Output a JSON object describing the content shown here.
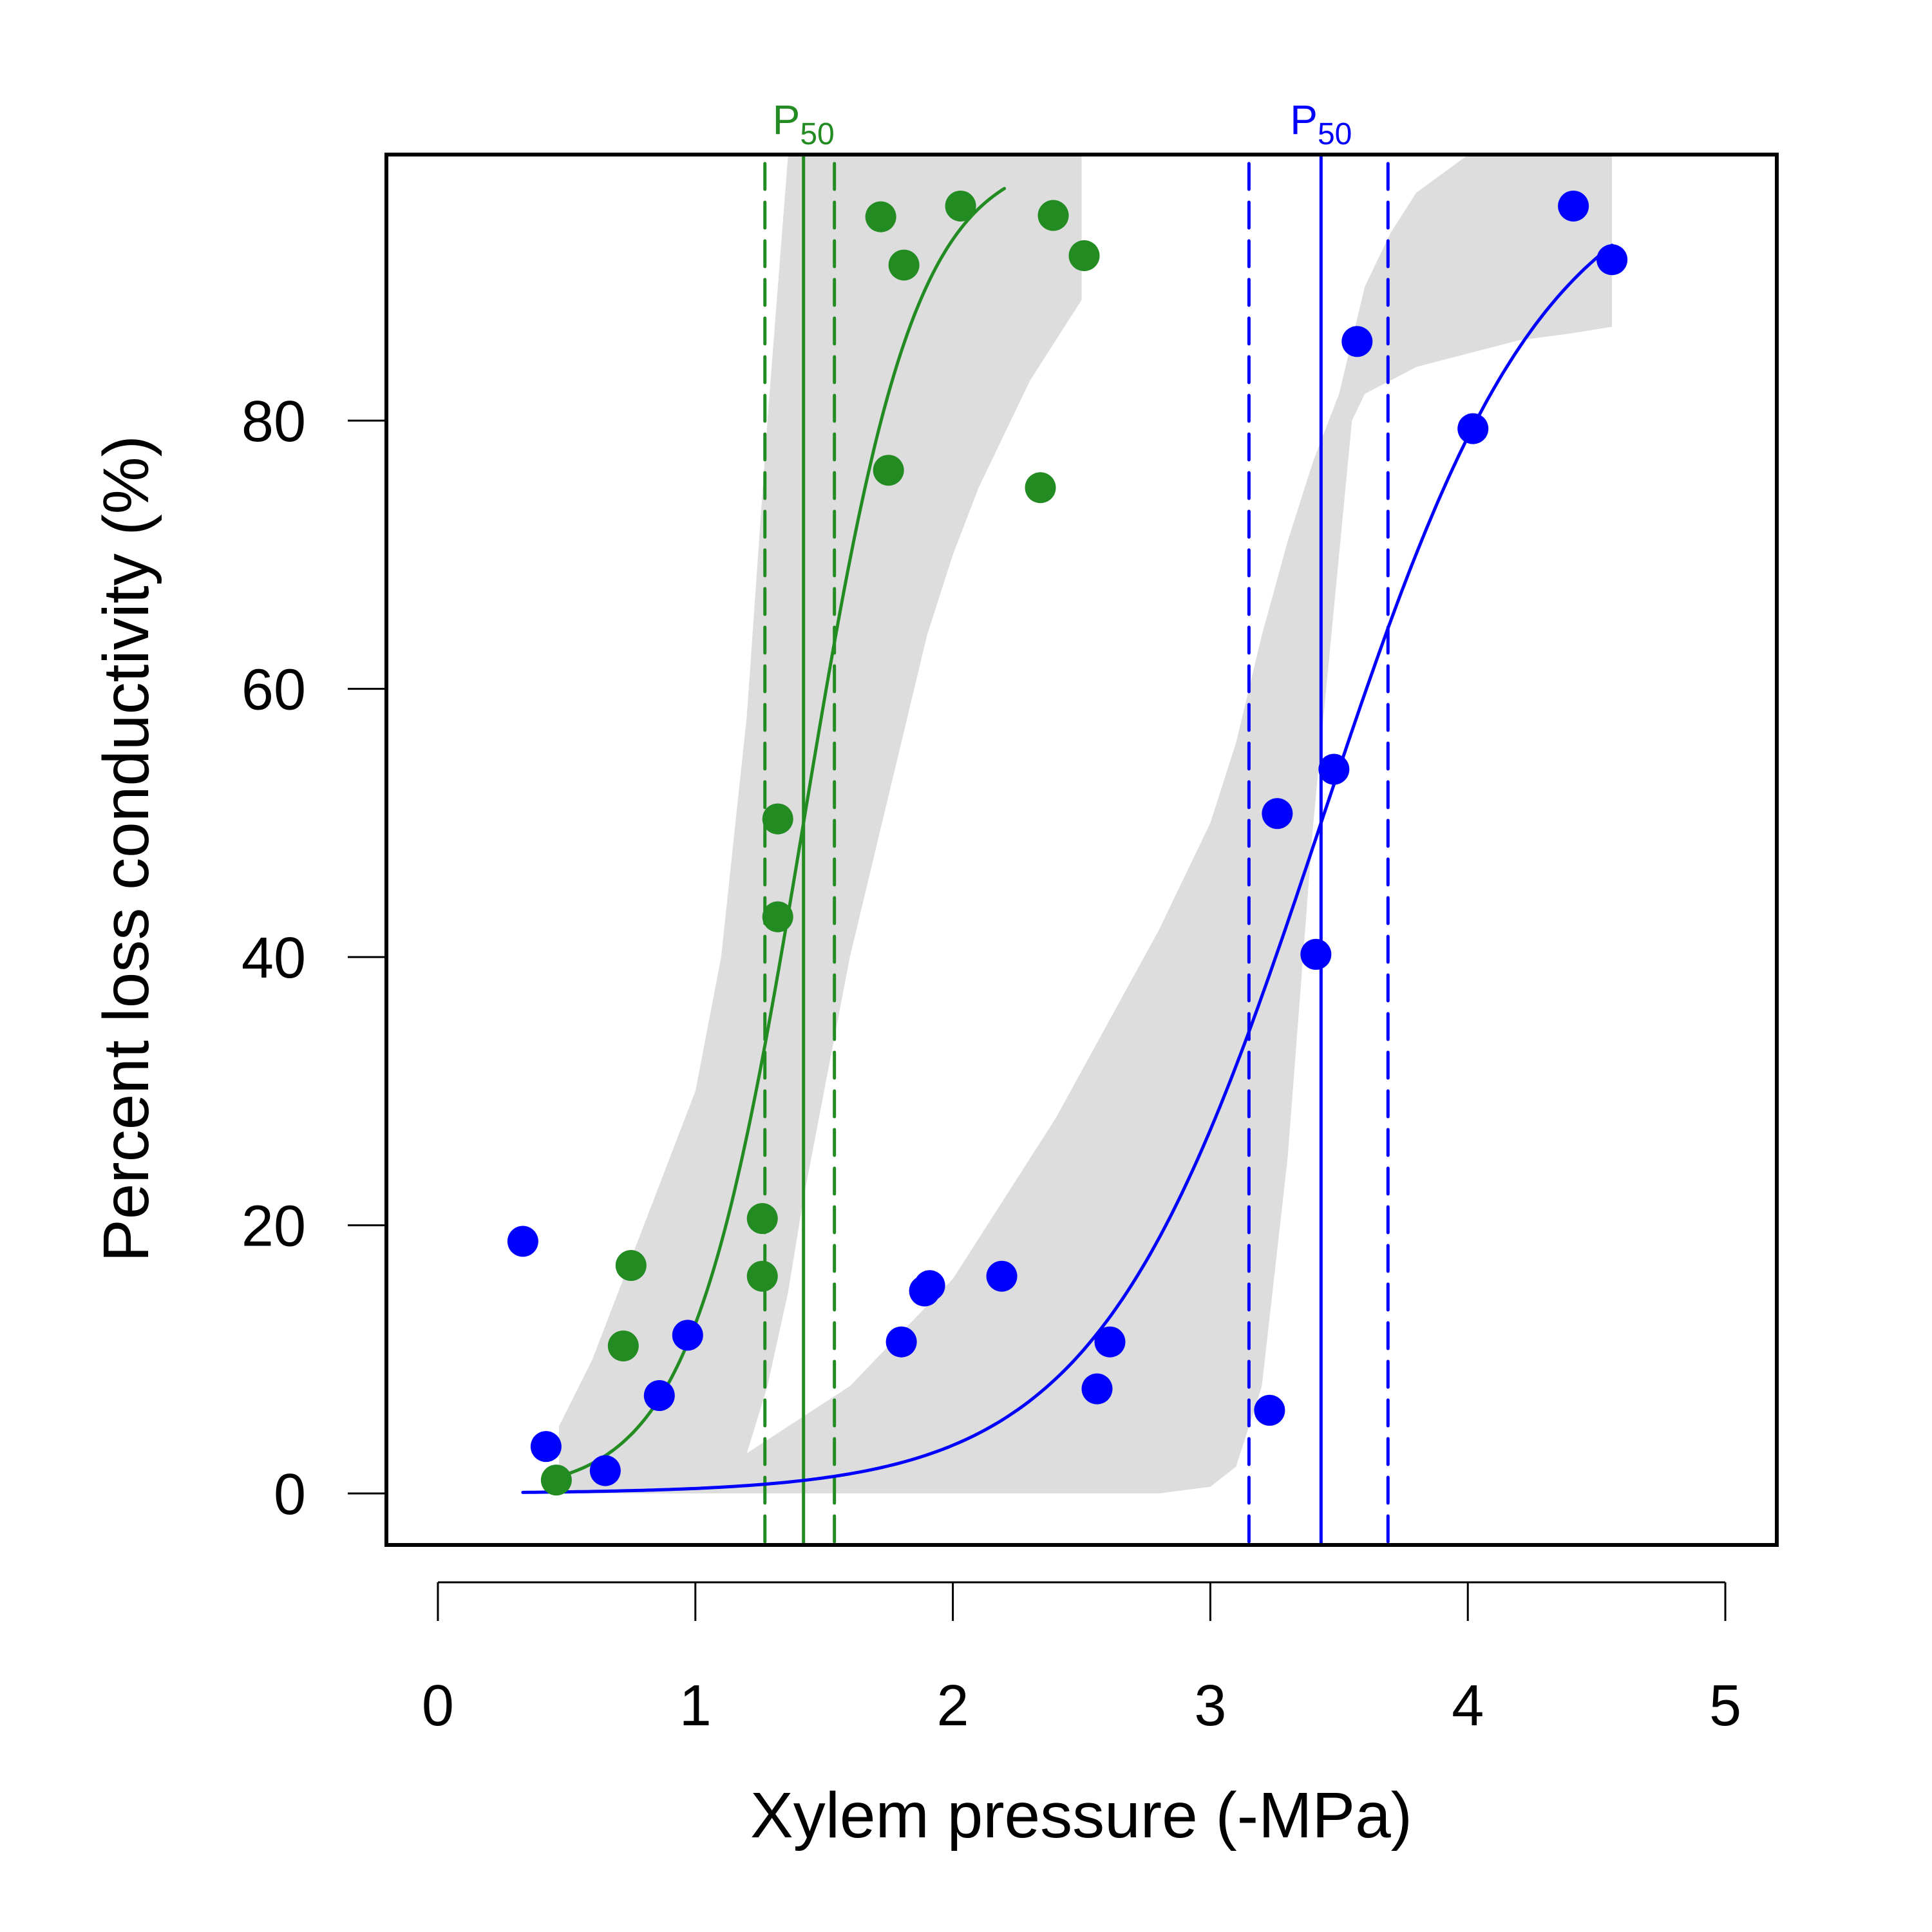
{
  "chart_data": {
    "type": "scatter",
    "title": "",
    "xlabel": "Xylem pressure (-MPa)",
    "ylabel": "Percent loss conductivity (%)",
    "xlim": [
      -0.2,
      5.2
    ],
    "ylim": [
      -3.84,
      99.84
    ],
    "xticks": [
      0,
      1,
      2,
      3,
      4,
      5
    ],
    "xtick_labels": [
      "0",
      "1",
      "2",
      "3",
      "4",
      "5"
    ],
    "yticks": [
      0,
      20,
      40,
      60,
      80
    ],
    "ytick_labels": [
      "0",
      "20",
      "40",
      "60",
      "80"
    ],
    "grid": false,
    "band_color": "#DBDBDB",
    "series": [
      {
        "name": "green",
        "color": "#228B22",
        "p50_label": "P",
        "p50_sub": "50",
        "p50": 1.42,
        "p50_ci": [
          1.27,
          1.54
        ],
        "fit": {
          "midpoint": 1.42,
          "slope": 4.6,
          "xrange": [
            0.45,
            2.2
          ]
        },
        "band": {
          "x": [
            0.47,
            0.6,
            0.8,
            1.0,
            1.1,
            1.2,
            1.28,
            1.36,
            1.42,
            1.5,
            1.6,
            1.7,
            1.8,
            1.9,
            2.0,
            2.1,
            2.2,
            2.3,
            2.4,
            2.5,
            2.5
          ],
          "lower": [
            0.5,
            0.5,
            0.5,
            0.6,
            1.0,
            3,
            8,
            15,
            22,
            30,
            40,
            48,
            56,
            64,
            70,
            75,
            79,
            83,
            86,
            89,
            89
          ],
          "upper": [
            5,
            10,
            20,
            30,
            40,
            58,
            80,
            99.8,
            99.8,
            99.8,
            99.8,
            99.8,
            99.8,
            99.8,
            99.8,
            99.8,
            99.8,
            99.8,
            99.8,
            99.8,
            99.8
          ]
        },
        "points": [
          {
            "x": 0.46,
            "y": 1.0
          },
          {
            "x": 0.72,
            "y": 11.0
          },
          {
            "x": 0.75,
            "y": 17.0
          },
          {
            "x": 1.26,
            "y": 20.5
          },
          {
            "x": 1.26,
            "y": 16.2
          },
          {
            "x": 1.32,
            "y": 43.0
          },
          {
            "x": 1.32,
            "y": 50.3
          },
          {
            "x": 1.72,
            "y": 95.2
          },
          {
            "x": 1.81,
            "y": 91.6
          },
          {
            "x": 1.75,
            "y": 76.3
          },
          {
            "x": 2.03,
            "y": 96.0
          },
          {
            "x": 2.34,
            "y": 75.0
          },
          {
            "x": 2.39,
            "y": 95.3
          },
          {
            "x": 2.51,
            "y": 92.3
          }
        ]
      },
      {
        "name": "blue",
        "color": "#0000FF",
        "p50_label": "P",
        "p50_sub": "50",
        "p50": 3.43,
        "p50_ci": [
          3.15,
          3.69
        ],
        "fit": {
          "midpoint": 3.43,
          "slope": 2.3,
          "xrange": [
            0.33,
            4.56
          ]
        },
        "band": {
          "x": [
            0.45,
            0.8,
            1.2,
            1.6,
            2.0,
            2.4,
            2.8,
            3.0,
            3.1,
            3.2,
            3.3,
            3.4,
            3.5,
            3.55,
            3.6,
            3.7,
            3.8,
            4.0,
            4.2,
            4.4,
            4.56
          ],
          "lower": [
            0,
            0,
            0,
            0,
            0,
            0,
            0,
            0.5,
            2,
            8,
            25,
            50,
            70,
            80,
            82,
            83,
            84,
            85,
            86,
            86.5,
            87
          ],
          "upper": [
            0.5,
            1.0,
            3,
            8,
            16,
            28,
            42,
            50,
            56,
            64,
            71,
            77,
            82,
            86,
            90,
            94,
            97,
            99.8,
            99.8,
            99.8,
            99.8
          ]
        },
        "points": [
          {
            "x": 0.33,
            "y": 18.8
          },
          {
            "x": 0.42,
            "y": 3.5
          },
          {
            "x": 0.65,
            "y": 1.7
          },
          {
            "x": 0.86,
            "y": 7.3
          },
          {
            "x": 0.97,
            "y": 11.8
          },
          {
            "x": 1.8,
            "y": 11.3
          },
          {
            "x": 1.89,
            "y": 15.1
          },
          {
            "x": 1.91,
            "y": 15.5
          },
          {
            "x": 2.19,
            "y": 16.2
          },
          {
            "x": 2.56,
            "y": 7.8
          },
          {
            "x": 2.61,
            "y": 11.3
          },
          {
            "x": 3.23,
            "y": 6.2
          },
          {
            "x": 3.26,
            "y": 50.7
          },
          {
            "x": 3.41,
            "y": 40.2
          },
          {
            "x": 3.48,
            "y": 54.0
          },
          {
            "x": 3.57,
            "y": 85.9
          },
          {
            "x": 4.02,
            "y": 79.4
          },
          {
            "x": 4.41,
            "y": 96.0
          },
          {
            "x": 4.56,
            "y": 92.0
          }
        ]
      }
    ]
  }
}
